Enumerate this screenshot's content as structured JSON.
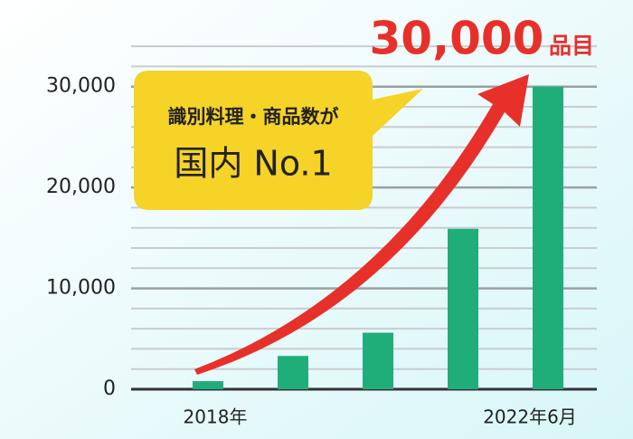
{
  "chart_data": {
    "type": "bar",
    "title": "30,000",
    "title_unit": "品目",
    "annotations": [
      "識別料理・商品数が",
      "国内 No.1"
    ],
    "categories": [
      "2018年",
      null,
      null,
      null,
      "2022年6月"
    ],
    "values": [
      800,
      3300,
      5600,
      15900,
      30000
    ],
    "color": "#1fae7a",
    "ylim": [
      0,
      35000
    ],
    "yticks": [
      {
        "value": 0,
        "label": "0"
      },
      {
        "value": 10000,
        "label": "10,000"
      },
      {
        "value": 20000,
        "label": "20,000"
      },
      {
        "value": 30000,
        "label": "30,000"
      }
    ],
    "minor_yticks": [
      2000,
      4000,
      6000,
      8000,
      12000,
      14000,
      16000,
      18000,
      22000,
      24000,
      26000,
      28000,
      32000,
      34000
    ],
    "grid": true
  }
}
